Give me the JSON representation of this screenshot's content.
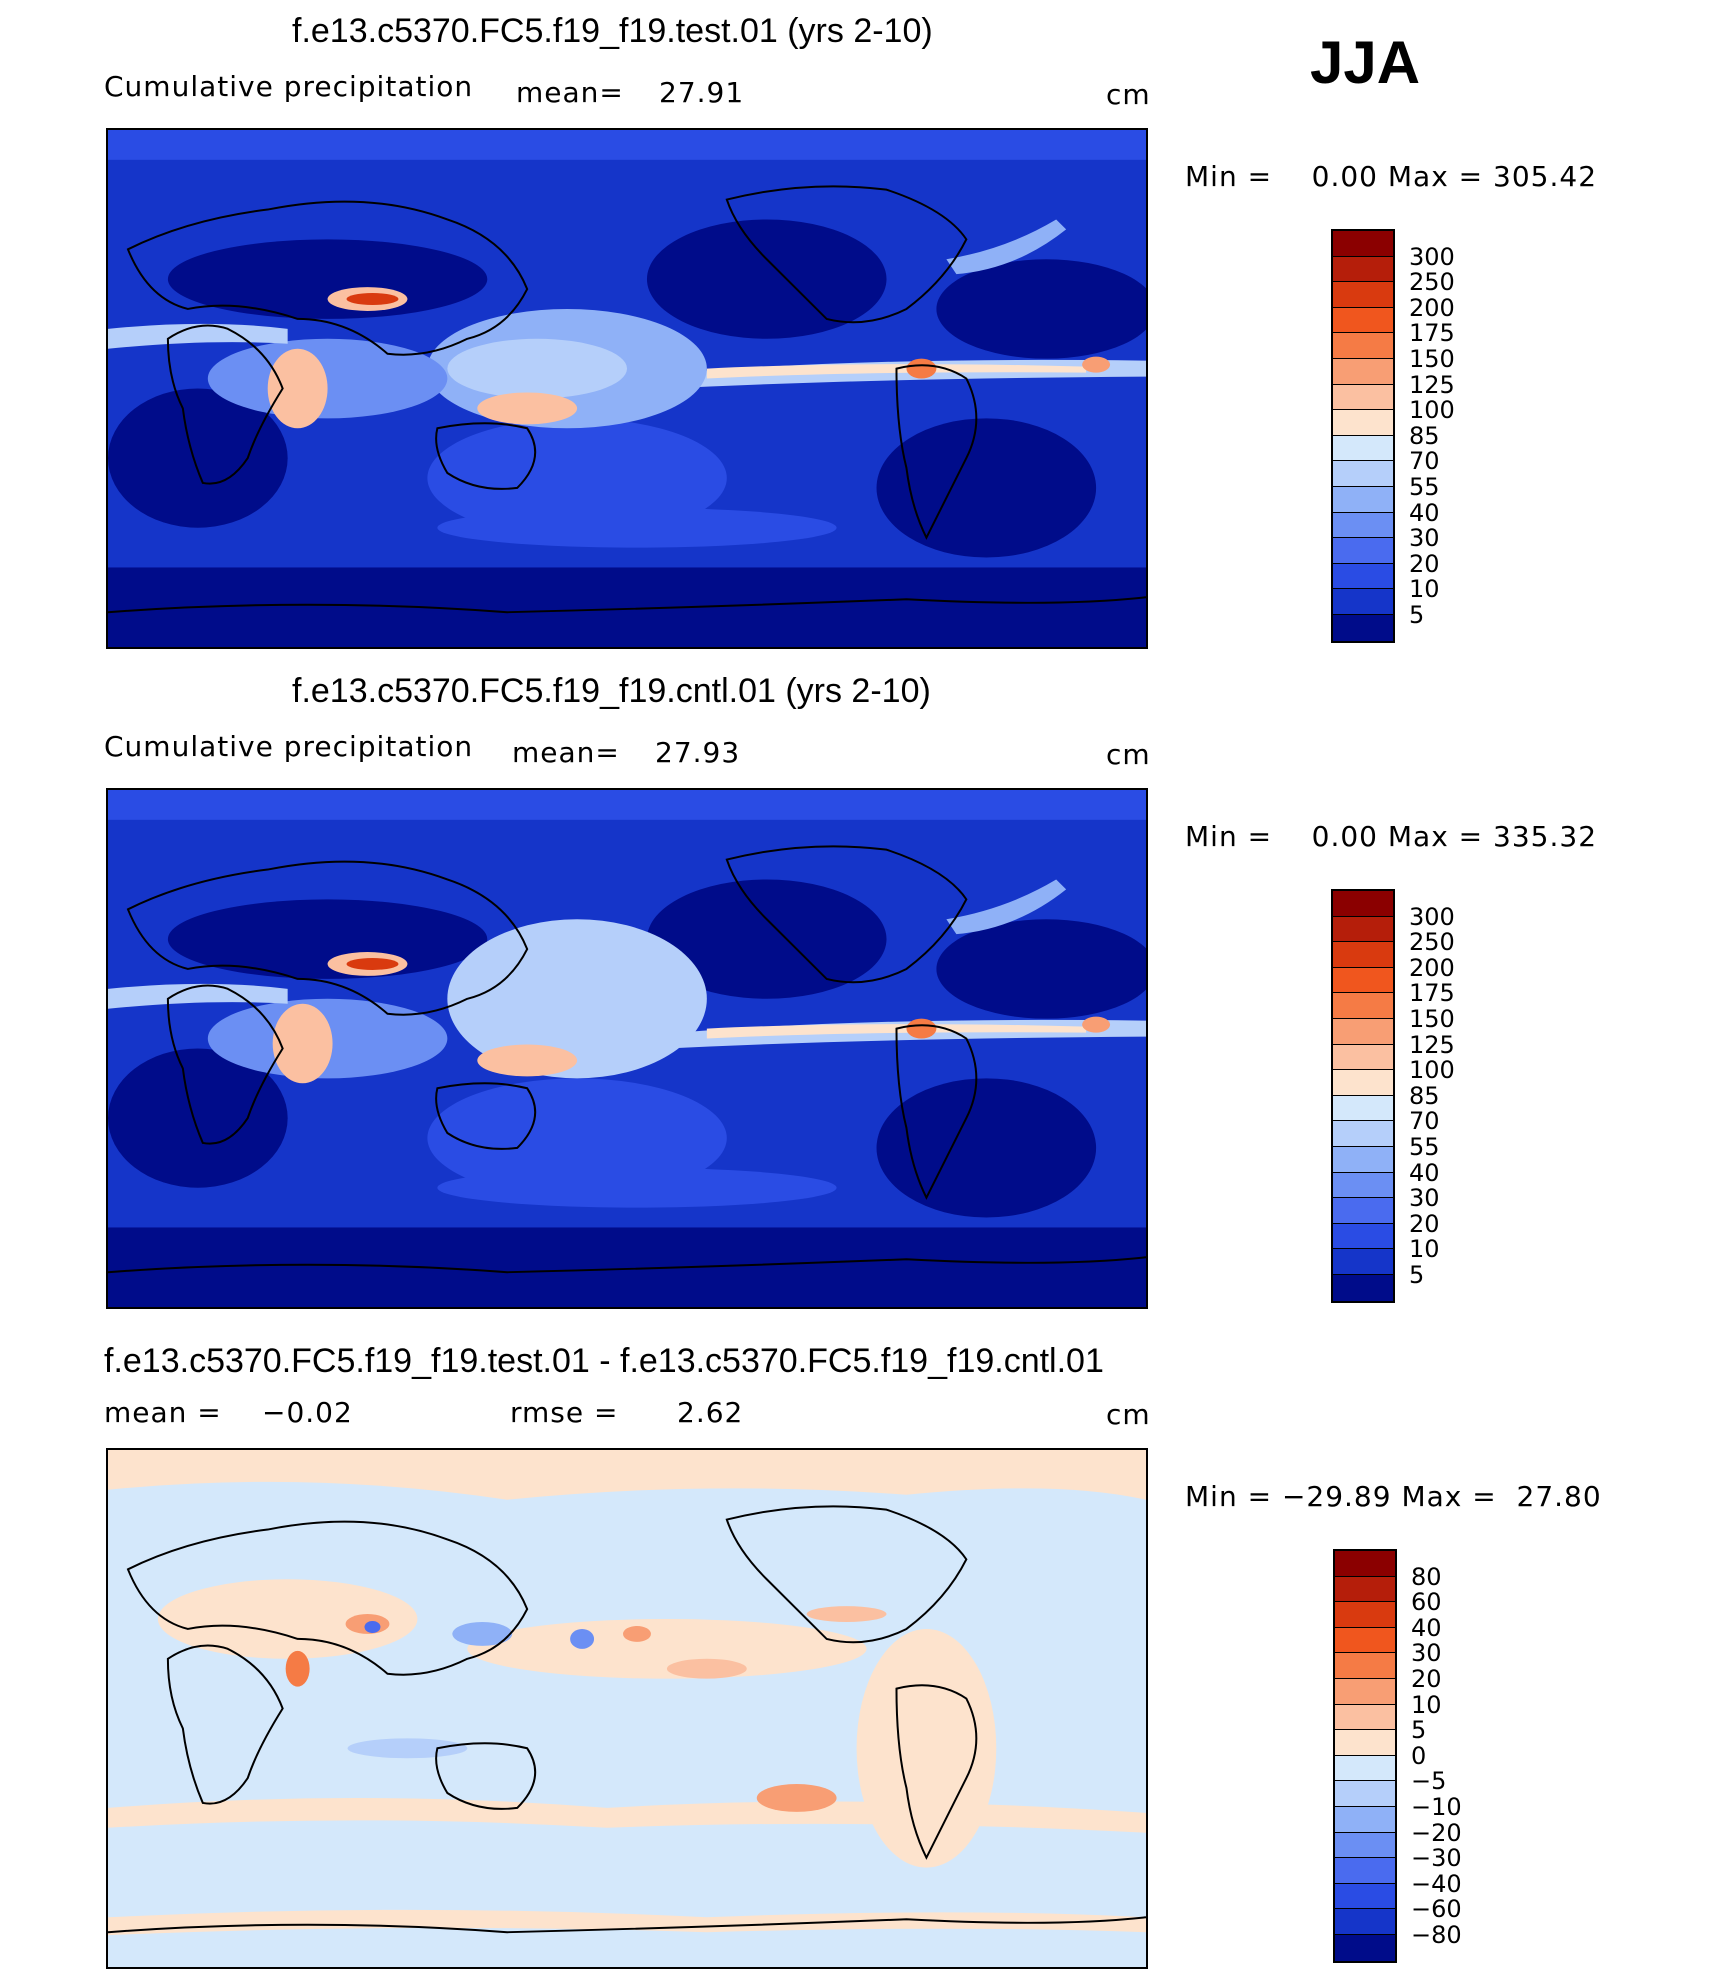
{
  "season": "JJA",
  "units": "cm",
  "coast_color": "#000000",
  "panels": [
    {
      "id": "test",
      "title": "f.e13.c5370.FC5.f19_f19.test.01 (yrs 2-10)",
      "variable": "Cumulative precipitation",
      "stat1_label": "mean=",
      "stat1_value": "27.91",
      "stat2_label": "",
      "stat2_value": "",
      "units": "cm",
      "minmax": "Min =    0.00 Max = 305.42",
      "colorbar": {
        "levels": [
          "300",
          "250",
          "200",
          "175",
          "150",
          "125",
          "100",
          "85",
          "70",
          "55",
          "40",
          "30",
          "20",
          "10",
          "5"
        ],
        "colors": [
          "#8b0000",
          "#b51e0a",
          "#d93a0f",
          "#f0561e",
          "#f57b45",
          "#f89e74",
          "#fbc0a1",
          "#fde3cd",
          "#d4e8fb",
          "#b5cffa",
          "#8fb1f7",
          "#6b8ff3",
          "#4a6bef",
          "#2a4ce4",
          "#1535c9",
          "#000c8a"
        ]
      }
    },
    {
      "id": "cntl",
      "title": "f.e13.c5370.FC5.f19_f19.cntl.01 (yrs 2-10)",
      "variable": "Cumulative precipitation",
      "stat1_label": "mean=",
      "stat1_value": "27.93",
      "stat2_label": "",
      "stat2_value": "",
      "units": "cm",
      "minmax": "Min =    0.00 Max = 335.32",
      "colorbar": {
        "levels": [
          "300",
          "250",
          "200",
          "175",
          "150",
          "125",
          "100",
          "85",
          "70",
          "55",
          "40",
          "30",
          "20",
          "10",
          "5"
        ],
        "colors": [
          "#8b0000",
          "#b51e0a",
          "#d93a0f",
          "#f0561e",
          "#f57b45",
          "#f89e74",
          "#fbc0a1",
          "#fde3cd",
          "#d4e8fb",
          "#b5cffa",
          "#8fb1f7",
          "#6b8ff3",
          "#4a6bef",
          "#2a4ce4",
          "#1535c9",
          "#000c8a"
        ]
      }
    },
    {
      "id": "diff",
      "title": "f.e13.c5370.FC5.f19_f19.test.01 - f.e13.c5370.FC5.f19_f19.cntl.01",
      "variable": "",
      "stat1_label": "mean =",
      "stat1_value": "−0.02",
      "stat2_label": "rmse =",
      "stat2_value": "2.62",
      "units": "cm",
      "minmax": "Min = −29.89 Max =  27.80",
      "colorbar": {
        "levels": [
          "80",
          "60",
          "40",
          "30",
          "20",
          "10",
          "5",
          "0",
          "−5",
          "−10",
          "−20",
          "−30",
          "−40",
          "−60",
          "−80"
        ],
        "colors": [
          "#8b0000",
          "#b51e0a",
          "#d93a0f",
          "#f0561e",
          "#f57b45",
          "#f89e74",
          "#fbc0a1",
          "#fde3cd",
          "#d4e8fb",
          "#b5cffa",
          "#8fb1f7",
          "#6b8ff3",
          "#4a6bef",
          "#2a4ce4",
          "#1535c9",
          "#000c8a"
        ]
      }
    }
  ]
}
